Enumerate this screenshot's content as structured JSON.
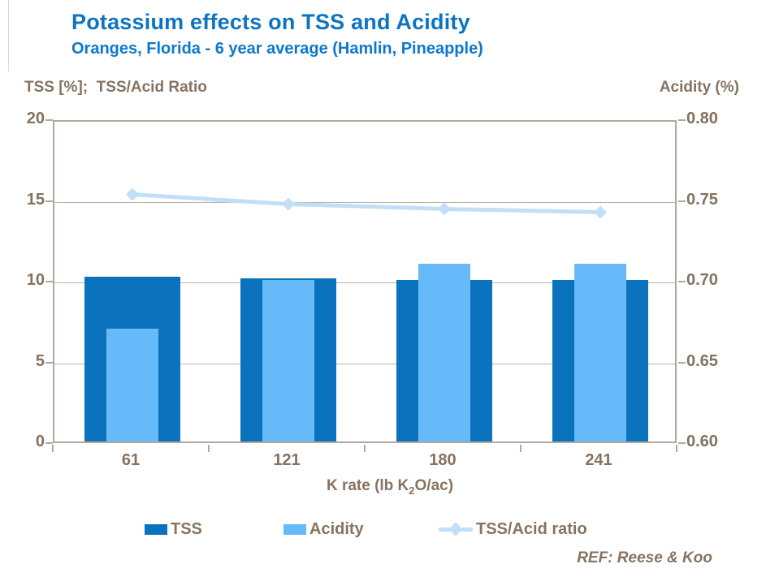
{
  "title": "Potassium effects on TSS and Acidity",
  "subtitle": "Oranges, Florida - 6 year average (Hamlin, Pineapple)",
  "footer_ref": "REF: Reese & Koo",
  "x_axis_title": {
    "pre": "K rate (lb K",
    "sub": "2",
    "post": "O/ac)"
  },
  "colors": {
    "title_blue": "#0c74c4",
    "subtitle_blue": "#0b79cf",
    "text_brown": "#867362",
    "tick_brown": "#857160",
    "axis_frame": "#b1a99d",
    "gridline": "#b9b1a5",
    "tss_bar": "#0b72be",
    "acidity_bar": "#67baf9",
    "ratio_line": "#c2dff7"
  },
  "chart_data": {
    "type": "bar",
    "subtype": "bar+line combo, dual axis",
    "categories": [
      "61",
      "121",
      "180",
      "241"
    ],
    "title": "Potassium effects on TSS and Acidity",
    "subtitle": "Oranges, Florida - 6 year average (Hamlin, Pineapple)",
    "xlabel": "K rate (lb K2O/ac)",
    "left_axis": {
      "label": "TSS [%];  TSS/Acid Ratio",
      "range": [
        0,
        20
      ],
      "ticks": [
        "20",
        "15",
        "10",
        "5",
        "0"
      ],
      "tick_values": [
        20,
        15,
        10,
        5,
        0
      ]
    },
    "right_axis": {
      "label": "Acidity (%)",
      "range": [
        0.6,
        0.8
      ],
      "ticks": [
        "0.80",
        "0.75",
        "0.70",
        "0.65",
        "0.60"
      ],
      "tick_values": [
        0.8,
        0.75,
        0.7,
        0.65,
        0.6
      ]
    },
    "series": [
      {
        "name": "TSS",
        "type": "bar",
        "axis": "left",
        "values": [
          10.2,
          10.1,
          10.0,
          10.0
        ],
        "color": "#0b72be"
      },
      {
        "name": "Acidity",
        "type": "bar",
        "axis": "right",
        "values": [
          0.67,
          0.7,
          0.71,
          0.71
        ],
        "color": "#67baf9"
      },
      {
        "name": "TSS/Acid ratio",
        "type": "line",
        "axis": "left",
        "values": [
          15.5,
          14.9,
          14.6,
          14.4
        ],
        "color": "#c2dff7",
        "marker": "diamond"
      }
    ],
    "grid": "horizontal gridlines at left-axis ticks 5, 10, 15",
    "legend_position": "bottom",
    "annotations": [
      "REF: Reese & Koo"
    ]
  }
}
